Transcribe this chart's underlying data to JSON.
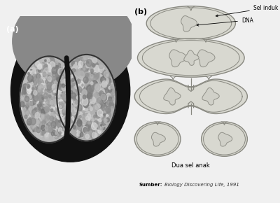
{
  "bg_color": "#f0f0f0",
  "label_a": "(a)",
  "label_b": "(b)",
  "label_sel_induk": "Sel induk",
  "label_dna": "DNA",
  "label_dua_sel": "Dua sel anak",
  "label_sumber_bold": "Sumber:",
  "label_sumber_italic": "Biology Discovering Life, 1991",
  "cell_fill": "#d8d8d0",
  "cell_edge": "#888880",
  "cell_inner_fill": "#e8e8e2",
  "dna_fill": "#d0d0c8",
  "dna_edge": "#909088"
}
